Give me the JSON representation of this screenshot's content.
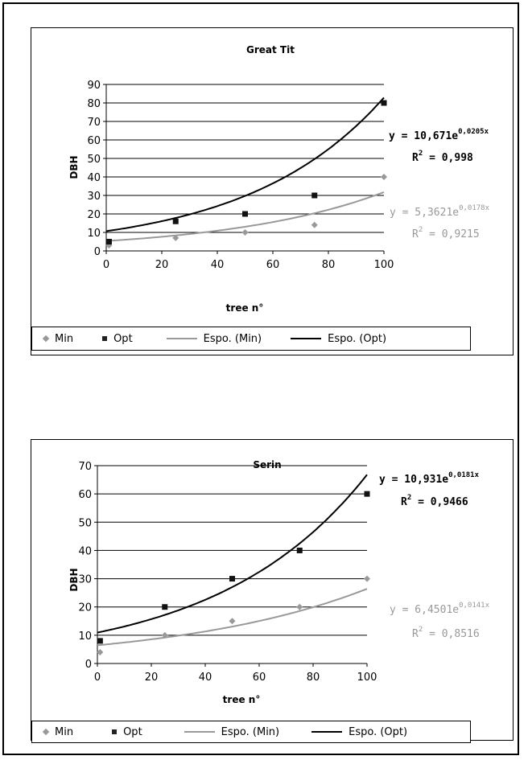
{
  "colors": {
    "opt": "#111111",
    "min": "#999999",
    "opt_fit": "#000000",
    "min_fit": "#999999",
    "grid": "#000000"
  },
  "chart_data": [
    {
      "type": "scatter",
      "title": "Great Tit",
      "xlabel": "tree n°",
      "ylabel": "DBH",
      "xlim": [
        0,
        100
      ],
      "ylim": [
        0,
        90
      ],
      "xticks": [
        "0",
        "20",
        "40",
        "60",
        "80",
        "100"
      ],
      "yticks": [
        "0",
        "10",
        "20",
        "30",
        "40",
        "50",
        "60",
        "70",
        "80",
        "90"
      ],
      "grid": true,
      "legend_position": "bottom",
      "series": [
        {
          "name": "Min",
          "marker": "diamond",
          "points": [
            [
              1,
              3
            ],
            [
              25,
              7
            ],
            [
              50,
              10
            ],
            [
              75,
              14
            ],
            [
              100,
              40
            ]
          ]
        },
        {
          "name": "Opt",
          "marker": "square",
          "points": [
            [
              1,
              5
            ],
            [
              25,
              16
            ],
            [
              50,
              20
            ],
            [
              75,
              30
            ],
            [
              100,
              80
            ]
          ]
        }
      ],
      "fits": [
        {
          "name": "Espo. (Min)",
          "a": 5.3621,
          "b": 0.0178,
          "equation": "y = 5,3621e",
          "exponent": "0,0178x",
          "r2_label": "R",
          "r2_sup": "2",
          "r2_value": " = 0,9215"
        },
        {
          "name": "Espo. (Opt)",
          "a": 10.671,
          "b": 0.0205,
          "equation": "y = 10,671e",
          "exponent": "0,0205x",
          "r2_label": "R",
          "r2_sup": "2",
          "r2_value": " = 0,998"
        }
      ]
    },
    {
      "type": "scatter",
      "title": "Serin",
      "xlabel": "tree n°",
      "ylabel": "DBH",
      "xlim": [
        0,
        100
      ],
      "ylim": [
        0,
        70
      ],
      "xticks": [
        "0",
        "20",
        "40",
        "60",
        "80",
        "100"
      ],
      "yticks": [
        "0",
        "10",
        "20",
        "30",
        "40",
        "50",
        "60",
        "70"
      ],
      "grid": true,
      "legend_position": "bottom",
      "series": [
        {
          "name": "Min",
          "marker": "diamond",
          "points": [
            [
              1,
              4
            ],
            [
              25,
              10
            ],
            [
              50,
              15
            ],
            [
              75,
              20
            ],
            [
              100,
              30
            ]
          ]
        },
        {
          "name": "Opt",
          "marker": "square",
          "points": [
            [
              1,
              8
            ],
            [
              25,
              20
            ],
            [
              50,
              30
            ],
            [
              75,
              40
            ],
            [
              100,
              60
            ]
          ]
        }
      ],
      "fits": [
        {
          "name": "Espo. (Min)",
          "a": 6.4501,
          "b": 0.0141,
          "equation": "y = 6,4501e",
          "exponent": "0,0141x",
          "r2_label": "R",
          "r2_sup": "2",
          "r2_value": " = 0,8516"
        },
        {
          "name": "Espo. (Opt)",
          "a": 10.931,
          "b": 0.0181,
          "equation": "y = 10,931e",
          "exponent": "0,0181x",
          "r2_label": "R",
          "r2_sup": "2",
          "r2_value": " = 0,9466"
        }
      ]
    }
  ]
}
